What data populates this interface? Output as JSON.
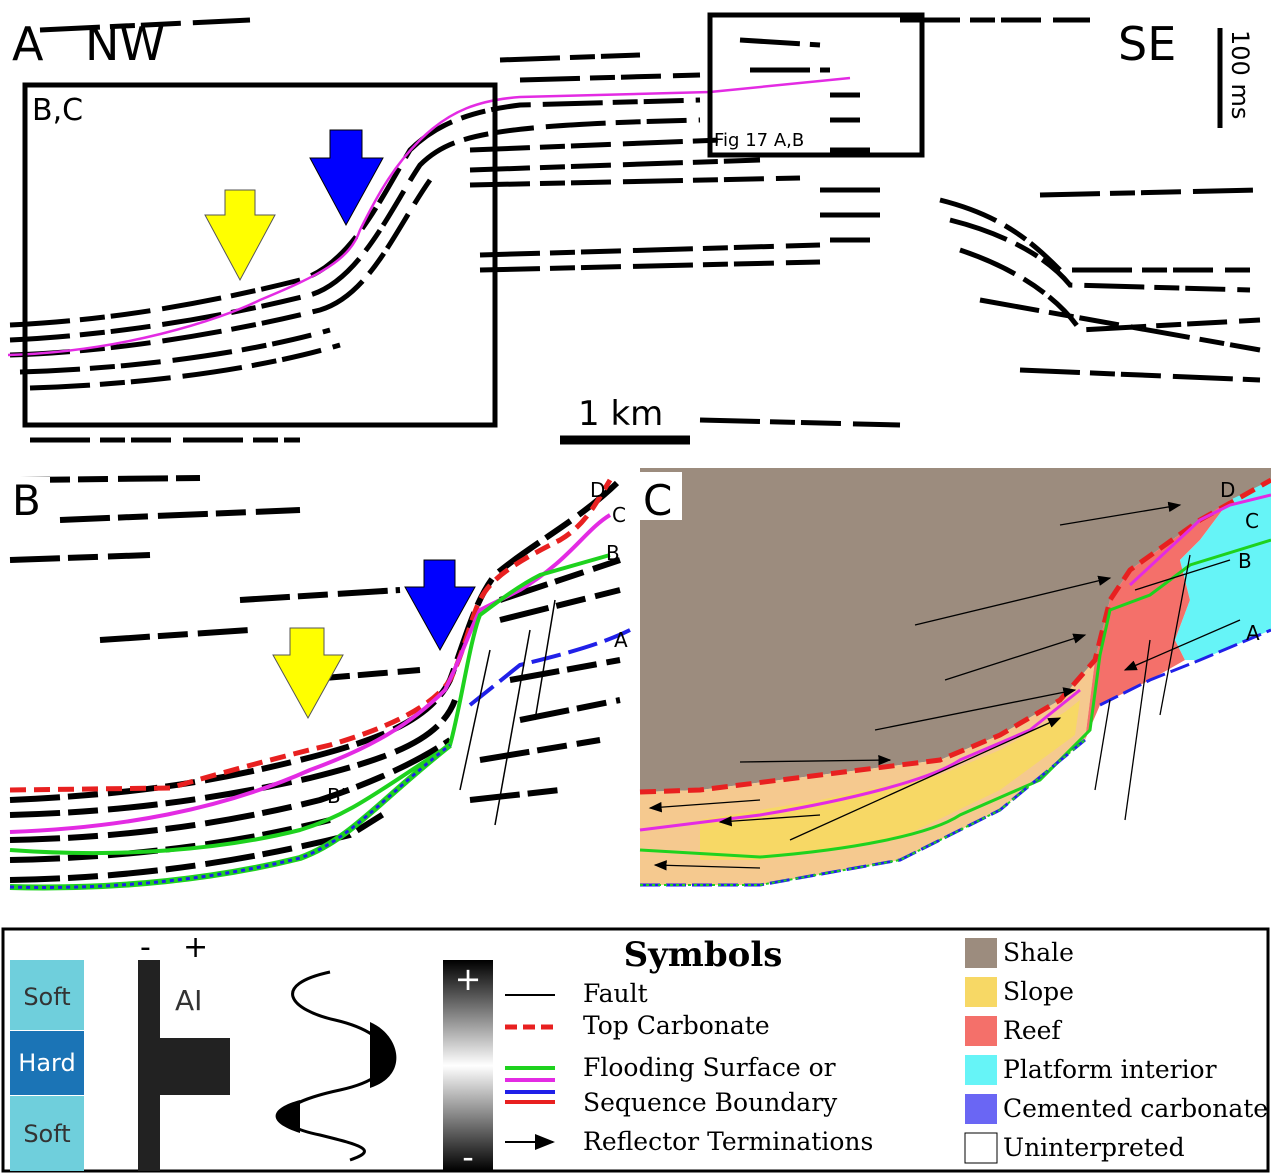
{
  "panel_a": {
    "label": "A",
    "left_direction": "NW",
    "right_direction": "SE",
    "vertical_scale": "100 ms",
    "inset_bc": "B,C",
    "inset_fig": "Fig 17 A,B",
    "horizontal_scale": "1 km"
  },
  "panel_b": {
    "label": "B",
    "horizons": [
      "D",
      "C",
      "B",
      "A",
      "B'"
    ]
  },
  "panel_c": {
    "label": "C",
    "horizons": [
      "D",
      "C",
      "B",
      "A"
    ]
  },
  "legend": {
    "ai_column": {
      "minus": "-",
      "plus": "+",
      "layers": [
        "Soft",
        "Hard",
        "Soft"
      ],
      "label": "AI"
    },
    "amplitude_bar": {
      "plus": "+",
      "minus": "-"
    },
    "symbols": {
      "title": "Symbols",
      "items": [
        "Fault",
        "Top Carbonate",
        "Flooding Surface or",
        "Sequence Boundary",
        "Reflector Terminations"
      ]
    },
    "facies": [
      {
        "name": "Shale",
        "color": "#9c8c7e"
      },
      {
        "name": "Slope",
        "color": "#f7d865"
      },
      {
        "name": "Reef",
        "color": "#f4706a"
      },
      {
        "name": "Platform interior",
        "color": "#66f4f7"
      },
      {
        "name": "Cemented carbonate",
        "color": "#6a66f4"
      },
      {
        "name": "Uninterpreted",
        "color": "#ffffff"
      }
    ]
  }
}
